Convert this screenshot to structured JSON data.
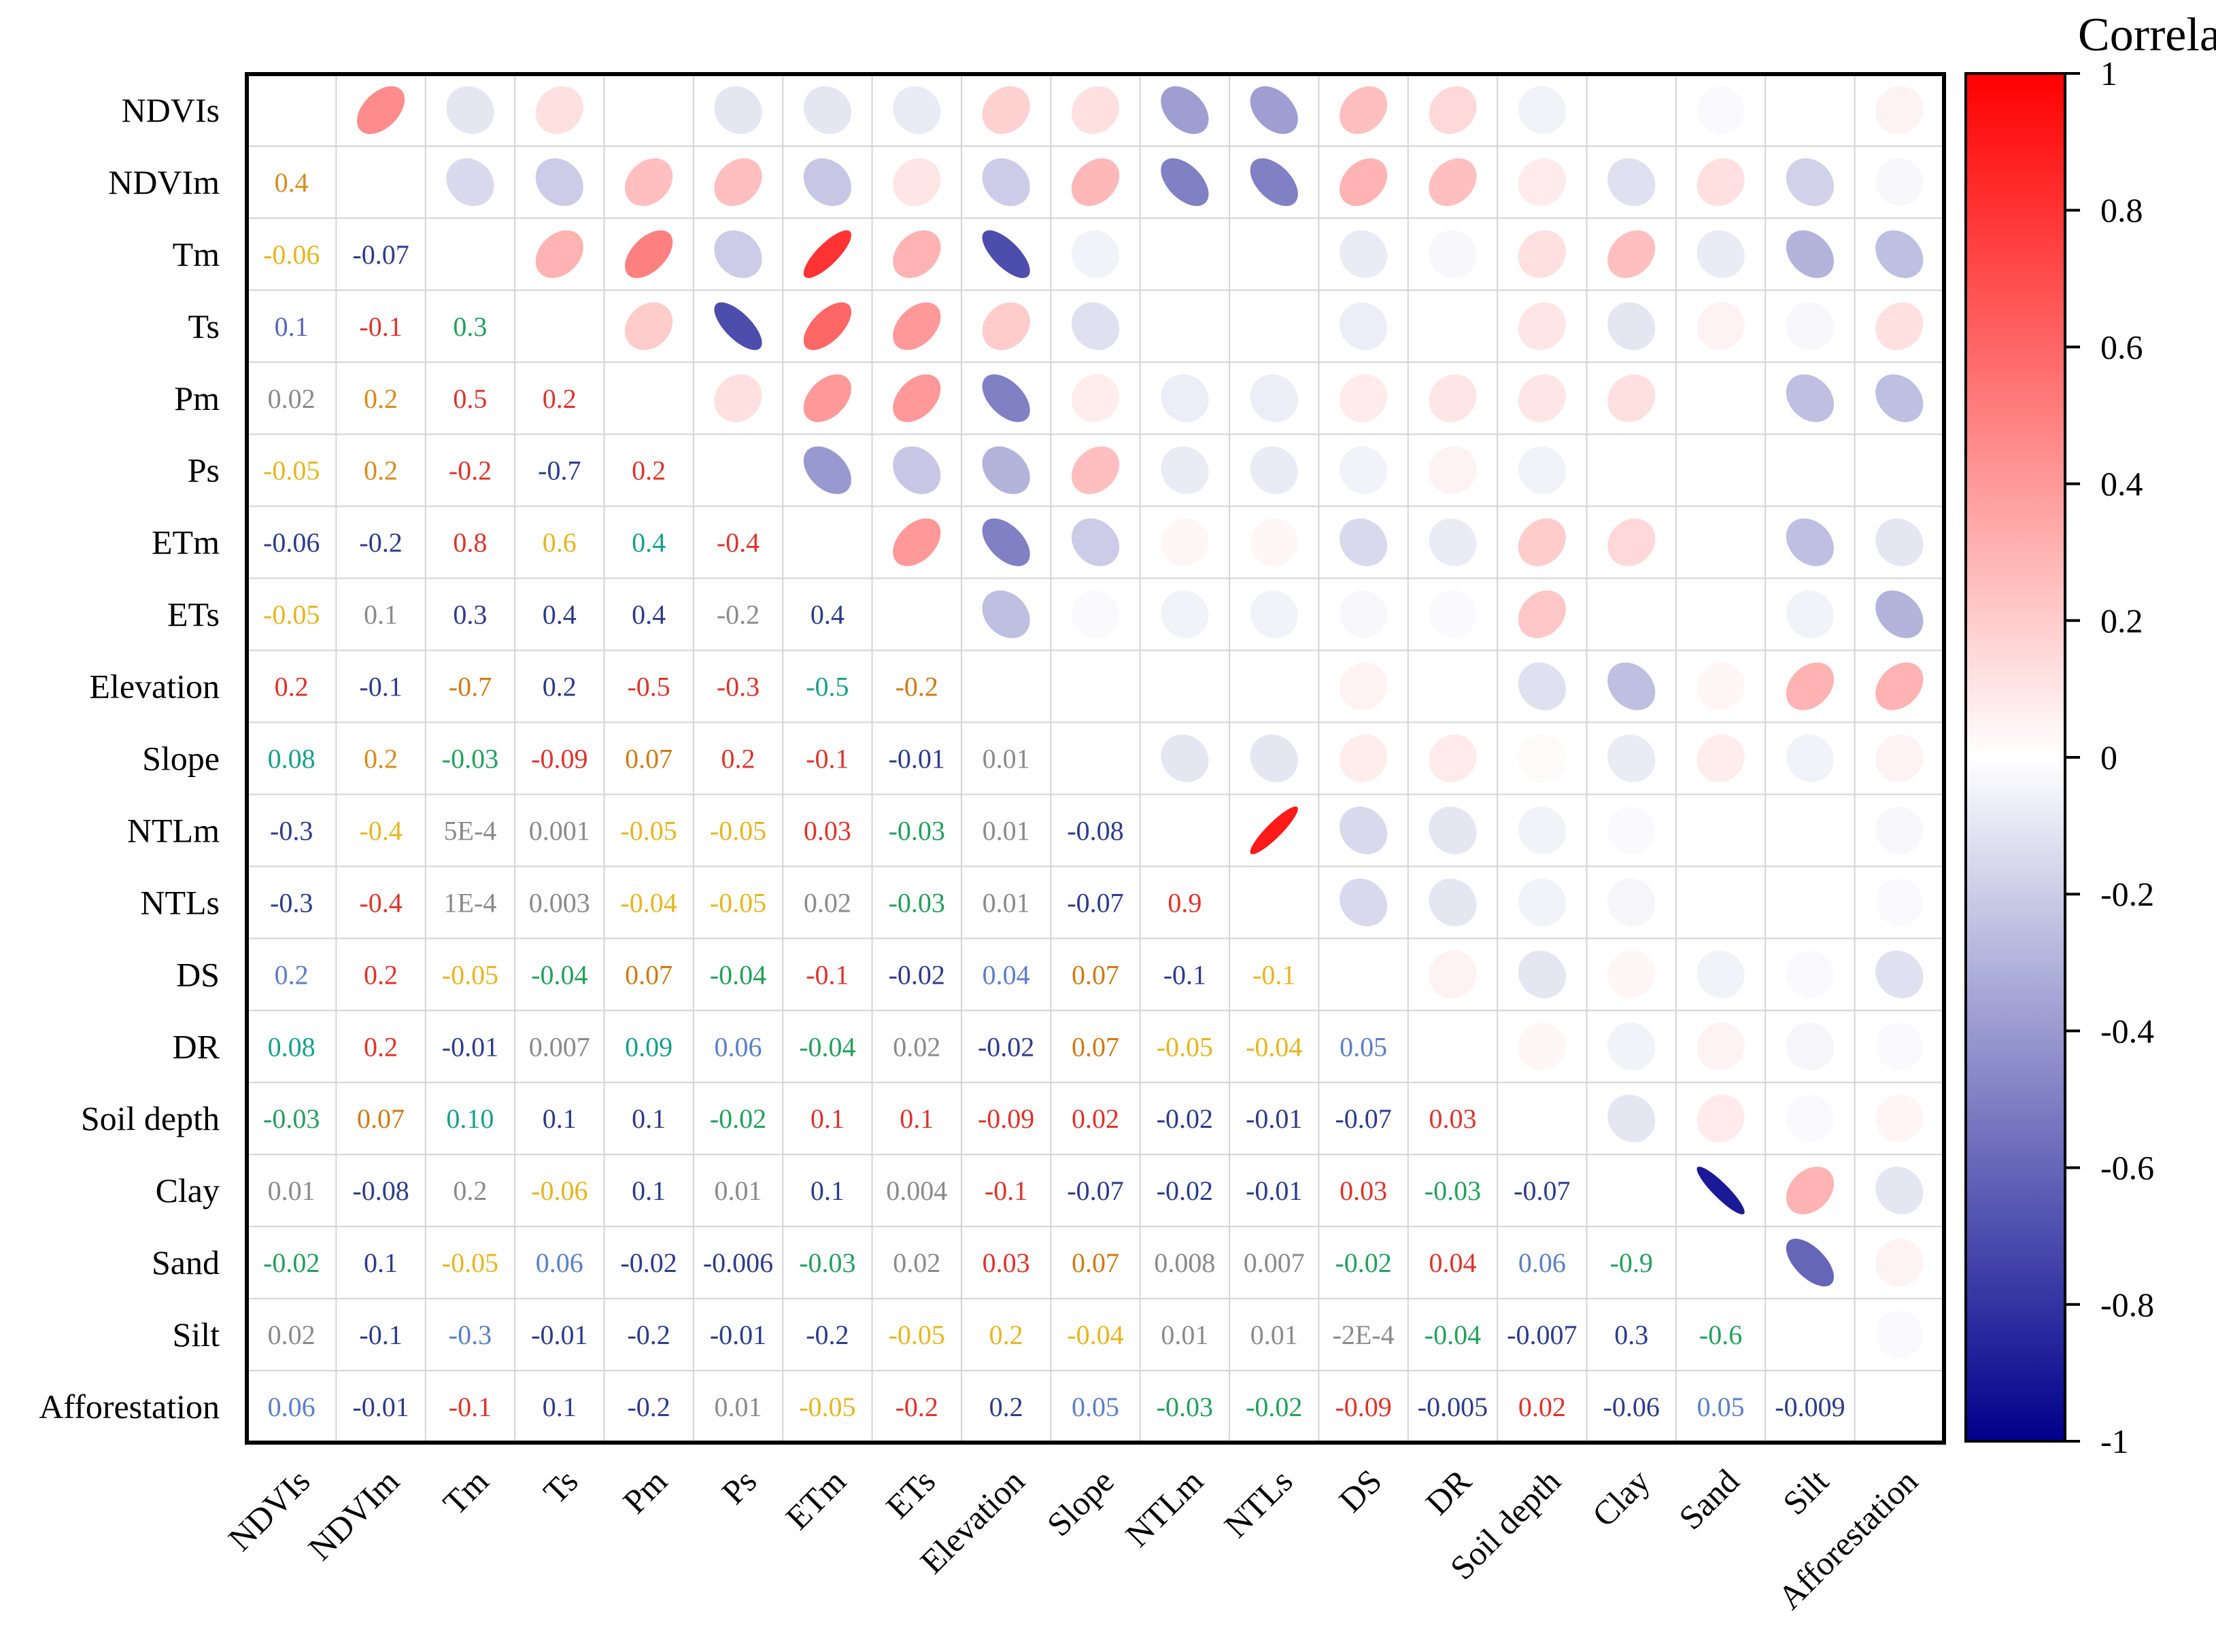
{
  "chart_data": {
    "type": "heatmap",
    "subtype": "correlation-matrix",
    "lower_triangle": "numbers",
    "upper_triangle": "ellipses",
    "variables": [
      "NDVIs",
      "NDVIm",
      "Tm",
      "Ts",
      "Pm",
      "Ps",
      "ETm",
      "ETs",
      "Elevation",
      "Slope",
      "NTLm",
      "NTLs",
      "DS",
      "DR",
      "Soil depth",
      "Clay",
      "Sand",
      "Silt",
      "Afforestation"
    ],
    "lower_labels": [
      [],
      [
        "0.4"
      ],
      [
        "-0.06",
        "-0.07"
      ],
      [
        "0.1",
        "-0.1",
        "0.3"
      ],
      [
        "0.02",
        "0.2",
        "0.5",
        "0.2"
      ],
      [
        "-0.05",
        "0.2",
        "-0.2",
        "-0.7",
        "0.2"
      ],
      [
        "-0.06",
        "-0.2",
        "0.8",
        "0.6",
        "0.4",
        "-0.4"
      ],
      [
        "-0.05",
        "0.1",
        "0.3",
        "0.4",
        "0.4",
        "-0.2",
        "0.4"
      ],
      [
        "0.2",
        "-0.1",
        "-0.7",
        "0.2",
        "-0.5",
        "-0.3",
        "-0.5",
        "-0.2"
      ],
      [
        "0.08",
        "0.2",
        "-0.03",
        "-0.09",
        "0.07",
        "0.2",
        "-0.1",
        "-0.01",
        "0.01"
      ],
      [
        "-0.3",
        "-0.4",
        "5E-4",
        "0.001",
        "-0.05",
        "-0.05",
        "0.03",
        "-0.03",
        "0.01",
        "-0.08"
      ],
      [
        "-0.3",
        "-0.4",
        "1E-4",
        "0.003",
        "-0.04",
        "-0.05",
        "0.02",
        "-0.03",
        "0.01",
        "-0.07",
        "0.9"
      ],
      [
        "0.2",
        "0.2",
        "-0.05",
        "-0.04",
        "0.07",
        "-0.04",
        "-0.1",
        "-0.02",
        "0.04",
        "0.07",
        "-0.1",
        "-0.1"
      ],
      [
        "0.08",
        "0.2",
        "-0.01",
        "0.007",
        "0.09",
        "0.06",
        "-0.04",
        "0.02",
        "-0.02",
        "0.07",
        "-0.05",
        "-0.04",
        "0.05"
      ],
      [
        "-0.03",
        "0.07",
        "0.10",
        "0.1",
        "0.1",
        "-0.02",
        "0.1",
        "0.1",
        "-0.09",
        "0.02",
        "-0.02",
        "-0.01",
        "-0.07",
        "0.03"
      ],
      [
        "0.01",
        "-0.08",
        "0.2",
        "-0.06",
        "0.1",
        "0.01",
        "0.1",
        "0.004",
        "-0.1",
        "-0.07",
        "-0.02",
        "-0.01",
        "0.03",
        "-0.03",
        "-0.07"
      ],
      [
        "-0.02",
        "0.1",
        "-0.05",
        "0.06",
        "-0.02",
        "-0.006",
        "-0.03",
        "0.02",
        "0.03",
        "0.07",
        "0.008",
        "0.007",
        "-0.02",
        "0.04",
        "0.06",
        "-0.9"
      ],
      [
        "0.02",
        "-0.1",
        "-0.3",
        "-0.01",
        "-0.2",
        "-0.01",
        "-0.2",
        "-0.05",
        "0.2",
        "-0.04",
        "0.01",
        "0.01",
        "-2E-4",
        "-0.04",
        "-0.007",
        "0.3",
        "-0.6"
      ],
      [
        "0.06",
        "-0.01",
        "-0.1",
        "0.1",
        "-0.2",
        "0.01",
        "-0.05",
        "-0.2",
        "0.2",
        "0.05",
        "-0.03",
        "-0.02",
        "-0.09",
        "-0.005",
        "0.02",
        "-0.06",
        "0.05",
        "-0.009"
      ]
    ],
    "upper_values": [
      [
        null,
        0.45,
        -0.1,
        0.12,
        0,
        -0.1,
        -0.1,
        -0.08,
        0.18,
        0.12,
        -0.38,
        -0.38,
        0.25,
        0.15,
        -0.05,
        0,
        -0.02,
        0,
        0.05
      ],
      [
        null,
        null,
        -0.15,
        -0.2,
        0.25,
        0.25,
        -0.22,
        0.1,
        -0.2,
        0.28,
        -0.5,
        -0.5,
        0.3,
        0.25,
        0.08,
        -0.12,
        0.12,
        -0.18,
        -0.03
      ],
      [
        null,
        null,
        null,
        0.3,
        0.5,
        -0.2,
        0.8,
        0.3,
        -0.7,
        -0.05,
        0,
        0,
        -0.08,
        -0.03,
        0.12,
        0.25,
        -0.08,
        -0.3,
        -0.25
      ],
      [
        null,
        null,
        null,
        null,
        0.2,
        -0.7,
        0.6,
        0.4,
        0.2,
        -0.12,
        0,
        0,
        -0.07,
        0,
        0.1,
        -0.1,
        0.05,
        -0.03,
        0.12
      ],
      [
        null,
        null,
        null,
        null,
        null,
        0.12,
        0.4,
        0.4,
        -0.5,
        0.07,
        -0.07,
        -0.07,
        0.08,
        0.1,
        0.1,
        0.12,
        0,
        -0.25,
        -0.25
      ],
      [
        null,
        null,
        null,
        null,
        null,
        null,
        -0.4,
        -0.22,
        -0.3,
        0.25,
        -0.08,
        -0.08,
        -0.05,
        0.05,
        -0.05,
        0,
        0,
        0,
        0
      ],
      [
        null,
        null,
        null,
        null,
        null,
        null,
        null,
        0.4,
        -0.5,
        -0.2,
        0.03,
        0.03,
        -0.15,
        -0.08,
        0.2,
        0.15,
        0,
        -0.25,
        -0.1
      ],
      [
        null,
        null,
        null,
        null,
        null,
        null,
        null,
        null,
        -0.25,
        -0.02,
        -0.05,
        -0.05,
        -0.03,
        -0.02,
        0.22,
        0,
        0,
        -0.05,
        -0.3
      ],
      [
        null,
        null,
        null,
        null,
        null,
        null,
        null,
        null,
        null,
        0,
        0,
        0,
        0.05,
        0,
        -0.12,
        -0.25,
        0.03,
        0.3,
        0.3
      ],
      [
        null,
        null,
        null,
        null,
        null,
        null,
        null,
        null,
        null,
        null,
        -0.1,
        -0.1,
        0.07,
        0.08,
        0.02,
        -0.08,
        0.07,
        -0.05,
        0.05
      ],
      [
        null,
        null,
        null,
        null,
        null,
        null,
        null,
        null,
        null,
        null,
        null,
        0.9,
        -0.15,
        -0.1,
        -0.05,
        -0.02,
        0,
        0,
        -0.03
      ],
      [
        null,
        null,
        null,
        null,
        null,
        null,
        null,
        null,
        null,
        null,
        null,
        null,
        -0.15,
        -0.1,
        -0.05,
        -0.04,
        0,
        0,
        -0.02
      ],
      [
        null,
        null,
        null,
        null,
        null,
        null,
        null,
        null,
        null,
        null,
        null,
        null,
        null,
        0.05,
        -0.1,
        0.03,
        -0.05,
        -0.02,
        -0.12
      ],
      [
        null,
        null,
        null,
        null,
        null,
        null,
        null,
        null,
        null,
        null,
        null,
        null,
        null,
        null,
        0.03,
        -0.05,
        0.05,
        -0.04,
        -0.02
      ],
      [
        null,
        null,
        null,
        null,
        null,
        null,
        null,
        null,
        null,
        null,
        null,
        null,
        null,
        null,
        null,
        -0.1,
        0.08,
        -0.02,
        0.04
      ],
      [
        null,
        null,
        null,
        null,
        null,
        null,
        null,
        null,
        null,
        null,
        null,
        null,
        null,
        null,
        null,
        null,
        -0.9,
        0.3,
        -0.1
      ],
      [
        null,
        null,
        null,
        null,
        null,
        null,
        null,
        null,
        null,
        null,
        null,
        null,
        null,
        null,
        null,
        null,
        null,
        -0.6,
        0.05
      ],
      [
        null,
        null,
        null,
        null,
        null,
        null,
        null,
        null,
        null,
        null,
        null,
        null,
        null,
        null,
        null,
        null,
        null,
        null,
        -0.02
      ],
      [
        null,
        null,
        null,
        null,
        null,
        null,
        null,
        null,
        null,
        null,
        null,
        null,
        null,
        null,
        null,
        null,
        null,
        null,
        null
      ]
    ],
    "label_colors": {
      "0.4": "#d98a1a",
      "-0.06": "#e8b51e",
      "-0.07": "#2b3b8c",
      "0.1": "#5a64b8",
      "-0.1": "#e0322a",
      "0.3": "#22a05b",
      "0.02": "#8a8a8a",
      "0.2": "#e0322a",
      "0.5": "#e0322a",
      "-0.05": "#e8b51e",
      "-0.2": "#e0322a",
      "-0.7": "#2b3b8c",
      "0.8": "#e0322a",
      "0.6": "#e8b51e",
      "-0.4": "#e0322a",
      "-0.5": "#e0322a",
      "-0.3": "#e0322a",
      "0.08": "#16a08a",
      "-0.03": "#22a05b",
      "-0.09": "#e0322a",
      "0.07": "#d07a12",
      "-0.01": "#2b3b8c",
      "0.01": "#8a8a8a",
      "5E-4": "#8a8a8a",
      "0.001": "#8a8a8a",
      "0.03": "#e0322a",
      "-0.08": "#2b3b8c",
      "1E-4": "#8a8a8a",
      "0.003": "#8a8a8a",
      "-0.04": "#22a05b",
      "0.9": "#e0322a",
      "0.05": "#5a7fc8",
      "0.007": "#8a8a8a",
      "0.09": "#16a08a",
      "0.06": "#5a7fc8",
      "0.004": "#8a8a8a",
      "0.10": "#16a08a",
      "-0.02": "#22a05b",
      "-0.006": "#2b3b8c",
      "0.008": "#8a8a8a",
      "-0.9": "#22a05b",
      "-2E-4": "#8a8a8a",
      "-0.007": "#2b3b8c",
      "-0.6": "#22a05b",
      "-0.005": "#2b3b8c",
      "-0.009": "#2b3b8c"
    },
    "cell_label_colors": {
      "1_0": "#d98a1a",
      "3_0": "#5a64b8",
      "3_1": "#e0322a",
      "3_2": "#22a05b",
      "4_0": "#8a8a8a",
      "4_1": "#d98a1a",
      "4_2": "#e0322a",
      "4_3": "#e0322a",
      "5_1": "#d98a1a",
      "5_2": "#e0322a",
      "5_3": "#2b3b8c",
      "5_4": "#e0322a",
      "6_0": "#2b3b8c",
      "6_1": "#2b3b8c",
      "6_3": "#e8b51e",
      "6_4": "#16a08a",
      "7_1": "#8a8a8a",
      "7_2": "#2b3b8c",
      "7_3": "#2b3b8c",
      "7_4": "#2b3b8c",
      "7_5": "#8a8a8a",
      "7_6": "#2b3b8c",
      "8_1": "#2b3b8c",
      "8_2": "#d07a12",
      "8_3": "#2b3b8c",
      "8_4": "#e0322a",
      "8_5": "#e0322a",
      "8_6": "#16a08a",
      "8_7": "#d07a12",
      "9_1": "#d98a1a",
      "9_5": "#e0322a",
      "9_7": "#2b3b8c",
      "10_0": "#2b3b8c",
      "10_1": "#e8b51e",
      "10_4": "#e8b51e",
      "10_7": "#22a05b",
      "10_8": "#8a8a8a",
      "10_9": "#2b3b8c",
      "11_0": "#2b3b8c",
      "11_1": "#e0322a",
      "11_4": "#e8b51e",
      "11_5": "#e8b51e",
      "11_7": "#22a05b",
      "11_8": "#8a8a8a",
      "11_9": "#2b3b8c",
      "12_0": "#5a7fc8",
      "12_1": "#e0322a",
      "12_2": "#e8b51e",
      "12_4": "#d07a12",
      "12_6": "#e0322a",
      "12_7": "#2b3b8c",
      "12_8": "#5a7fc8",
      "12_10": "#2b3b8c",
      "12_11": "#e8b51e",
      "13_4": "#16a08a",
      "13_6": "#22a05b",
      "13_8": "#2b3b8c",
      "13_10": "#e8b51e",
      "13_11": "#e8b51e",
      "14_3": "#2b3b8c",
      "14_4": "#2b3b8c",
      "14_5": "#22a05b",
      "14_6": "#e0322a",
      "14_7": "#e0322a",
      "14_9": "#e0322a",
      "14_10": "#2b3b8c",
      "14_11": "#2b3b8c",
      "14_12": "#2b3b8c",
      "14_13": "#e0322a",
      "15_1": "#2b3b8c",
      "15_2": "#8a8a8a",
      "15_4": "#2b3b8c",
      "15_5": "#8a8a8a",
      "15_6": "#2b3b8c",
      "15_8": "#e0322a",
      "15_9": "#2b3b8c",
      "15_10": "#2b3b8c",
      "15_11": "#2b3b8c",
      "15_12": "#e0322a",
      "15_13": "#22a05b",
      "15_14": "#2b3b8c",
      "16_1": "#2b3b8c",
      "16_3": "#5a7fc8",
      "16_4": "#2b3b8c",
      "16_6": "#22a05b",
      "16_8": "#e0322a",
      "16_10": "#8a8a8a",
      "16_11": "#8a8a8a",
      "16_12": "#22a05b",
      "16_13": "#e0322a",
      "16_14": "#5a7fc8",
      "17_0": "#8a8a8a",
      "17_1": "#2b3b8c",
      "17_2": "#5a7fc8",
      "17_3": "#2b3b8c",
      "17_4": "#2b3b8c",
      "17_5": "#2b3b8c",
      "17_6": "#2b3b8c",
      "17_7": "#e8b51e",
      "17_8": "#e8b51e",
      "17_9": "#e8b51e",
      "17_10": "#8a8a8a",
      "17_11": "#8a8a8a",
      "17_13": "#22a05b",
      "17_15": "#2b3b8c",
      "17_16": "#22a05b",
      "18_0": "#5a7fc8",
      "18_1": "#2b3b8c",
      "18_2": "#e0322a",
      "18_3": "#2b3b8c",
      "18_4": "#2b3b8c",
      "18_5": "#8a8a8a",
      "18_6": "#e8b51e",
      "18_7": "#e0322a",
      "18_8": "#2b3b8c",
      "18_9": "#5a7fc8",
      "18_10": "#22a05b",
      "18_11": "#22a05b",
      "18_12": "#e0322a",
      "18_13": "#2b3b8c",
      "18_14": "#e0322a",
      "18_15": "#2b3b8c",
      "18_16": "#5a7fc8",
      "18_17": "#2b3b8c"
    },
    "colorbar": {
      "title": "Correlation",
      "range": [
        -1,
        1
      ],
      "ticks": [
        1,
        0.8,
        0.6,
        0.4,
        0.2,
        0,
        -0.2,
        -0.4,
        -0.6,
        -0.8,
        -1
      ],
      "tick_labels": [
        "1",
        "0.8",
        "0.6",
        "0.4",
        "0.2",
        "0",
        "-0.2",
        "-0.4",
        "-0.6",
        "-0.8",
        "-1"
      ],
      "colors": {
        "negative": "#00008b",
        "zero": "#ffffff",
        "positive": "#ff0000"
      }
    }
  }
}
